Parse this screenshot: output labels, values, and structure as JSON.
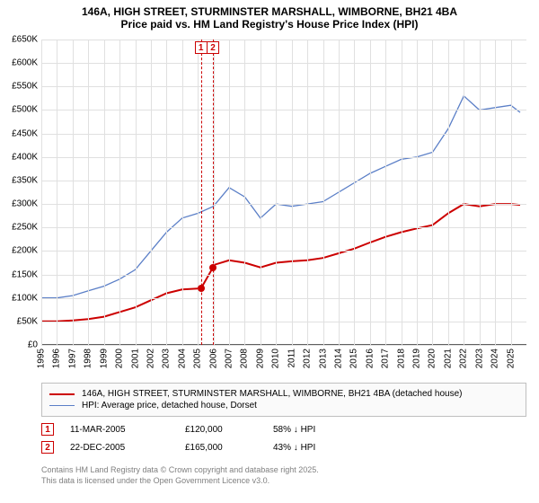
{
  "title_line1": "146A, HIGH STREET, STURMINSTER MARSHALL, WIMBORNE, BH21 4BA",
  "title_line2": "Price paid vs. HM Land Registry's House Price Index (HPI)",
  "chart": {
    "type": "line",
    "background_color": "#ffffff",
    "grid_color": "#e0e0e0",
    "axis_color": "#606060",
    "xlim": [
      1995,
      2026
    ],
    "ylim": [
      0,
      650000
    ],
    "xtick_step": 1,
    "ytick_step": 50000,
    "xtick_labels": [
      "1995",
      "1996",
      "1997",
      "1998",
      "1999",
      "2000",
      "2001",
      "2002",
      "2003",
      "2004",
      "2005",
      "2006",
      "2007",
      "2008",
      "2009",
      "2010",
      "2011",
      "2012",
      "2013",
      "2014",
      "2015",
      "2016",
      "2017",
      "2018",
      "2019",
      "2020",
      "2021",
      "2022",
      "2023",
      "2024",
      "2025"
    ],
    "ytick_labels": [
      "£0",
      "£50K",
      "£100K",
      "£150K",
      "£200K",
      "£250K",
      "£300K",
      "£350K",
      "£400K",
      "£450K",
      "£500K",
      "£550K",
      "£600K",
      "£650K"
    ],
    "xtick_rotation_deg": -90,
    "tick_fontsize": 10,
    "series": {
      "price_paid": {
        "label": "146A, HIGH STREET, STURMINSTER MARSHALL, WIMBORNE, BH21 4BA (detached house)",
        "color": "#cc0000",
        "line_width": 2,
        "x": [
          1995,
          1996,
          1997,
          1998,
          1999,
          2000,
          2001,
          2002,
          2003,
          2004,
          2005,
          2005.2,
          2005.97,
          2006,
          2007,
          2008,
          2009,
          2010,
          2011,
          2012,
          2013,
          2014,
          2015,
          2016,
          2017,
          2018,
          2019,
          2020,
          2021,
          2022,
          2023,
          2024,
          2025,
          2025.6
        ],
        "y": [
          50000,
          50000,
          52000,
          55000,
          60000,
          70000,
          80000,
          95000,
          110000,
          118000,
          120000,
          120000,
          165000,
          170000,
          180000,
          175000,
          165000,
          175000,
          178000,
          180000,
          185000,
          195000,
          205000,
          218000,
          230000,
          240000,
          248000,
          255000,
          280000,
          300000,
          295000,
          300000,
          300000,
          298000
        ]
      },
      "hpi": {
        "label": "HPI: Average price, detached house, Dorset",
        "color": "#5b7fc7",
        "line_width": 1.3,
        "x": [
          1995,
          1996,
          1997,
          1998,
          1999,
          2000,
          2001,
          2002,
          2003,
          2004,
          2005,
          2006,
          2007,
          2008,
          2009,
          2010,
          2011,
          2012,
          2013,
          2014,
          2015,
          2016,
          2017,
          2018,
          2019,
          2020,
          2021,
          2022,
          2023,
          2024,
          2025,
          2025.6
        ],
        "y": [
          100000,
          100000,
          105000,
          115000,
          125000,
          140000,
          160000,
          200000,
          240000,
          270000,
          280000,
          295000,
          335000,
          315000,
          270000,
          300000,
          295000,
          300000,
          305000,
          325000,
          345000,
          365000,
          380000,
          395000,
          400000,
          410000,
          460000,
          530000,
          500000,
          505000,
          510000,
          495000
        ]
      }
    },
    "vlines": [
      {
        "x": 2005.2,
        "color": "#cc0000",
        "dash": true,
        "number": "1"
      },
      {
        "x": 2005.97,
        "color": "#cc0000",
        "dash": true,
        "number": "2"
      }
    ],
    "price_markers": [
      {
        "x": 2005.2,
        "y": 120000,
        "color": "#cc0000"
      },
      {
        "x": 2005.97,
        "y": 165000,
        "color": "#cc0000"
      }
    ]
  },
  "legend": {
    "border_color": "#bfbfbf",
    "bg_color": "#fafafa",
    "fontsize": 10
  },
  "events": [
    {
      "num": "1",
      "box_color": "#cc0000",
      "date": "11-MAR-2005",
      "price": "£120,000",
      "diff": "58% ↓ HPI"
    },
    {
      "num": "2",
      "box_color": "#cc0000",
      "date": "22-DEC-2005",
      "price": "£165,000",
      "diff": "43% ↓ HPI"
    }
  ],
  "footer_line1": "Contains HM Land Registry data © Crown copyright and database right 2025.",
  "footer_line2": "This data is licensed under the Open Government Licence v3.0."
}
